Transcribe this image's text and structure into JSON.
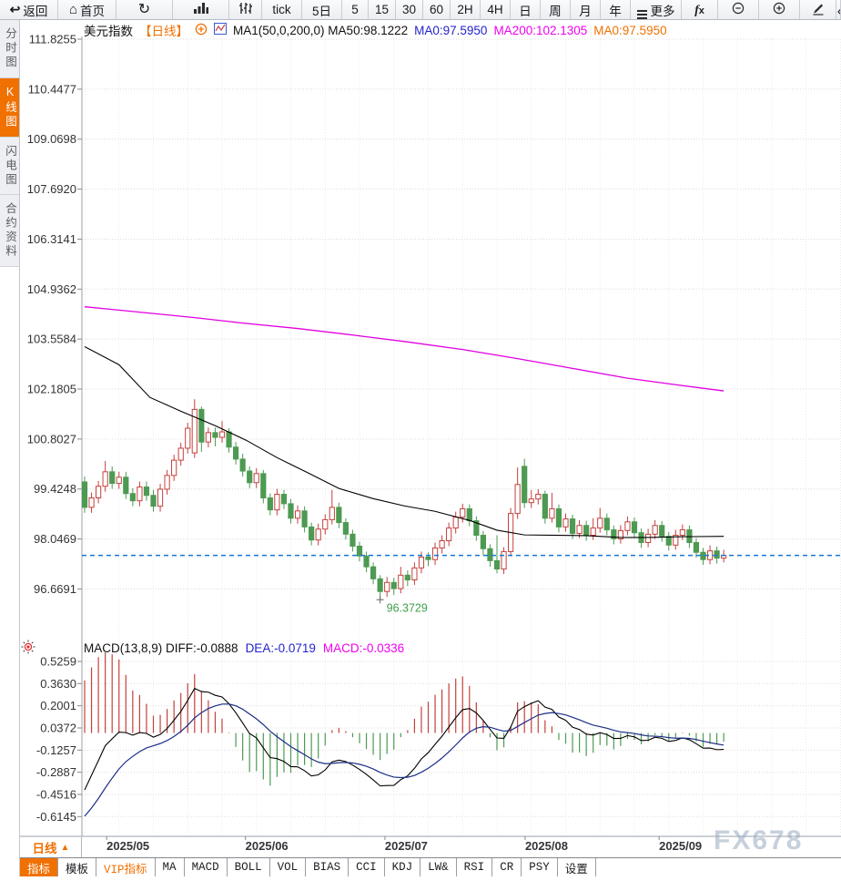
{
  "toolbar": {
    "items": [
      {
        "id": "back-button",
        "label": "返回",
        "icon": "back-icon"
      },
      {
        "id": "home-button",
        "label": "首页",
        "icon": "home-icon"
      },
      {
        "id": "refresh-button",
        "label": "",
        "icon": "refresh-icon"
      },
      {
        "id": "bar-chart-button",
        "label": "",
        "icon": "bars-icon"
      },
      {
        "id": "candle-chart-button",
        "label": "",
        "icon": "candles-icon"
      },
      {
        "id": "period-tick-button",
        "label": "tick",
        "icon": ""
      },
      {
        "id": "period-5d-button",
        "label": "5日",
        "icon": ""
      },
      {
        "id": "period-5-button",
        "label": "5",
        "icon": ""
      },
      {
        "id": "period-15-button",
        "label": "15",
        "icon": ""
      },
      {
        "id": "period-30-button",
        "label": "30",
        "icon": ""
      },
      {
        "id": "period-60-button",
        "label": "60",
        "icon": ""
      },
      {
        "id": "period-2h-button",
        "label": "2H",
        "icon": ""
      },
      {
        "id": "period-4h-button",
        "label": "4H",
        "icon": ""
      },
      {
        "id": "period-day-button",
        "label": "日",
        "icon": ""
      },
      {
        "id": "period-week-button",
        "label": "周",
        "icon": ""
      },
      {
        "id": "period-month-button",
        "label": "月",
        "icon": ""
      },
      {
        "id": "period-year-button",
        "label": "年",
        "icon": ""
      },
      {
        "id": "more-button",
        "label": "更多",
        "icon": "more-icon"
      },
      {
        "id": "indicator-fx-button",
        "label": "fx",
        "icon": ""
      },
      {
        "id": "zoom-out-button",
        "label": "",
        "icon": "zoom-out-icon"
      },
      {
        "id": "zoom-in-button",
        "label": "",
        "icon": "zoom-in-icon"
      },
      {
        "id": "draw-pencil-button",
        "label": "",
        "icon": "pencil-icon"
      },
      {
        "id": "clipped-button",
        "label": "",
        "icon": "partial-icon"
      }
    ]
  },
  "sidebar": {
    "items": [
      {
        "id": "time-chart",
        "label": "分时图",
        "active": false
      },
      {
        "id": "kline-chart",
        "label": "K线图",
        "active": true
      },
      {
        "id": "flash-chart",
        "label": "闪电图",
        "active": false
      },
      {
        "id": "contract-info",
        "label": "合约资料",
        "active": false
      }
    ]
  },
  "price_legend": {
    "symbol": "美元指数",
    "period": "【日线】",
    "ma_settings": "MA1(50,0,200,0) MA50:98.1222",
    "ma0_blue": "MA0:97.5950",
    "ma200": "MA200:102.1305",
    "ma0_orange": "MA0:97.5950"
  },
  "macd_legend": {
    "title": "MACD(13,8,9) DIFF:-0.0888",
    "dea": "DEA:-0.0719",
    "macd": "MACD:-0.0336"
  },
  "bottom": {
    "period_selector": {
      "label": "日线",
      "arrow": "▲"
    },
    "tabs": [
      {
        "id": "indicator",
        "label": "指标",
        "active": true
      },
      {
        "id": "template",
        "label": "模板"
      },
      {
        "id": "vip-indicator",
        "label": "VIP指标",
        "vip": true
      },
      {
        "id": "ma",
        "label": "MA"
      },
      {
        "id": "macd",
        "label": "MACD"
      },
      {
        "id": "boll",
        "label": "BOLL"
      },
      {
        "id": "vol",
        "label": "VOL"
      },
      {
        "id": "bias",
        "label": "BIAS"
      },
      {
        "id": "cci",
        "label": "CCI"
      },
      {
        "id": "kdj",
        "label": "KDJ"
      },
      {
        "id": "lwr",
        "label": "LW&"
      },
      {
        "id": "rsi",
        "label": "RSI"
      },
      {
        "id": "cr",
        "label": "CR"
      },
      {
        "id": "psy",
        "label": "PSY"
      },
      {
        "id": "settings",
        "label": "设置"
      }
    ]
  },
  "watermark": "FX678",
  "chart_data": {
    "type": "candlestick+macd",
    "title": "美元指数 日线",
    "price_axis": {
      "ticks": [
        "111.8255",
        "110.4477",
        "109.0698",
        "107.6920",
        "106.3141",
        "104.9362",
        "103.5584",
        "102.1805",
        "100.8027",
        "99.4248",
        "98.0469",
        "96.6691"
      ]
    },
    "macd_axis": {
      "ticks": [
        "0.5259",
        "0.3630",
        "0.2001",
        "0.0372",
        "-0.1257",
        "-0.2887",
        "-0.4516",
        "-0.6145"
      ]
    },
    "x_axis": {
      "month_ticks": [
        {
          "index": 3.2,
          "label": "2025/05"
        },
        {
          "index": 23.4,
          "label": "2025/06"
        },
        {
          "index": 43.7,
          "label": "2025/07"
        },
        {
          "index": 64.1,
          "label": "2025/08"
        },
        {
          "index": 83.6,
          "label": "2025/09"
        }
      ]
    },
    "current_price": 97.595,
    "low_marker": {
      "index": 43,
      "value": 96.3729,
      "label": "96.3729"
    },
    "candles": [
      [
        99.62,
        99.77,
        98.77,
        98.92
      ],
      [
        98.92,
        99.33,
        98.77,
        99.18
      ],
      [
        99.18,
        99.65,
        99.03,
        99.5
      ],
      [
        99.5,
        100.2,
        99.35,
        99.9
      ],
      [
        99.9,
        100.05,
        99.43,
        99.58
      ],
      [
        99.58,
        99.9,
        99.43,
        99.75
      ],
      [
        99.75,
        99.9,
        99.15,
        99.3
      ],
      [
        99.3,
        99.45,
        98.95,
        99.1
      ],
      [
        99.1,
        99.63,
        98.95,
        99.48
      ],
      [
        99.48,
        99.63,
        99.1,
        99.25
      ],
      [
        99.25,
        99.4,
        98.8,
        98.95
      ],
      [
        98.95,
        99.57,
        98.8,
        99.42
      ],
      [
        99.42,
        99.95,
        99.27,
        99.8
      ],
      [
        99.8,
        100.37,
        99.65,
        100.22
      ],
      [
        100.22,
        100.7,
        100.07,
        100.55
      ],
      [
        100.55,
        101.25,
        100.4,
        101.1
      ],
      [
        100.42,
        101.9,
        100.28,
        101.62
      ],
      [
        101.62,
        101.7,
        100.45,
        100.72
      ],
      [
        100.72,
        101.12,
        100.57,
        100.98
      ],
      [
        100.98,
        101.12,
        100.6,
        100.85
      ],
      [
        100.85,
        101.3,
        100.7,
        101.0
      ],
      [
        101.0,
        101.1,
        100.43,
        100.58
      ],
      [
        100.58,
        100.72,
        100.1,
        100.25
      ],
      [
        100.25,
        100.4,
        99.77,
        99.92
      ],
      [
        99.92,
        100.05,
        99.45,
        99.6
      ],
      [
        99.6,
        100.0,
        99.45,
        99.85
      ],
      [
        99.85,
        99.95,
        99.03,
        99.18
      ],
      [
        99.18,
        99.3,
        98.7,
        98.85
      ],
      [
        98.85,
        99.43,
        98.7,
        99.28
      ],
      [
        99.28,
        99.4,
        98.87,
        99.02
      ],
      [
        99.02,
        99.15,
        98.47,
        98.62
      ],
      [
        98.62,
        98.97,
        98.47,
        98.82
      ],
      [
        98.82,
        98.95,
        98.23,
        98.38
      ],
      [
        98.38,
        98.5,
        97.87,
        98.02
      ],
      [
        98.02,
        98.47,
        97.87,
        98.32
      ],
      [
        98.32,
        98.73,
        98.17,
        98.58
      ],
      [
        98.58,
        99.4,
        98.45,
        98.92
      ],
      [
        98.92,
        99.05,
        98.35,
        98.5
      ],
      [
        98.5,
        98.62,
        98.03,
        98.18
      ],
      [
        98.18,
        98.3,
        97.7,
        97.85
      ],
      [
        97.85,
        97.97,
        97.43,
        97.58
      ],
      [
        97.58,
        97.7,
        97.13,
        97.28
      ],
      [
        97.28,
        97.4,
        96.8,
        96.95
      ],
      [
        96.95,
        97.05,
        96.3729,
        96.6
      ],
      [
        96.6,
        97.0,
        96.45,
        96.85
      ],
      [
        96.85,
        96.98,
        96.5,
        96.68
      ],
      [
        96.68,
        97.28,
        96.55,
        97.05
      ],
      [
        97.05,
        97.18,
        96.75,
        96.92
      ],
      [
        96.92,
        97.4,
        96.78,
        97.25
      ],
      [
        97.25,
        97.7,
        97.1,
        97.55
      ],
      [
        97.55,
        97.68,
        97.3,
        97.48
      ],
      [
        97.48,
        97.95,
        97.33,
        97.8
      ],
      [
        97.8,
        98.15,
        97.65,
        98.0
      ],
      [
        98.0,
        98.5,
        97.85,
        98.35
      ],
      [
        98.35,
        98.8,
        98.2,
        98.65
      ],
      [
        98.65,
        99.02,
        98.5,
        98.88
      ],
      [
        98.88,
        99.0,
        98.4,
        98.55
      ],
      [
        98.55,
        98.67,
        98.0,
        98.15
      ],
      [
        98.15,
        98.27,
        97.6,
        97.78
      ],
      [
        97.78,
        97.9,
        97.28,
        97.45
      ],
      [
        97.45,
        98.15,
        97.1,
        97.22
      ],
      [
        97.22,
        97.82,
        97.08,
        97.7
      ],
      [
        97.7,
        98.9,
        97.57,
        98.75
      ],
      [
        98.75,
        100.02,
        98.6,
        99.55
      ],
      [
        100.05,
        100.26,
        98.9,
        99.05
      ],
      [
        99.05,
        99.4,
        98.9,
        99.15
      ],
      [
        99.15,
        99.42,
        99.0,
        99.28
      ],
      [
        99.28,
        99.38,
        98.47,
        98.62
      ],
      [
        98.62,
        99.32,
        98.5,
        98.88
      ],
      [
        98.88,
        99.0,
        98.23,
        98.38
      ],
      [
        98.38,
        98.75,
        98.25,
        98.6
      ],
      [
        98.6,
        98.72,
        98.05,
        98.2
      ],
      [
        98.2,
        98.57,
        98.07,
        98.42
      ],
      [
        98.42,
        98.55,
        98.0,
        98.15
      ],
      [
        98.15,
        98.62,
        98.02,
        98.35
      ],
      [
        98.35,
        98.9,
        98.22,
        98.62
      ],
      [
        98.62,
        98.75,
        98.15,
        98.3
      ],
      [
        98.3,
        98.42,
        97.9,
        98.05
      ],
      [
        98.05,
        98.43,
        97.92,
        98.28
      ],
      [
        98.28,
        98.67,
        98.15,
        98.52
      ],
      [
        98.52,
        98.64,
        98.07,
        98.22
      ],
      [
        98.22,
        98.34,
        97.8,
        97.95
      ],
      [
        97.95,
        98.33,
        97.82,
        98.18
      ],
      [
        98.18,
        98.57,
        98.05,
        98.42
      ],
      [
        98.42,
        98.54,
        97.97,
        98.12
      ],
      [
        98.12,
        98.24,
        97.73,
        97.88
      ],
      [
        97.88,
        98.3,
        97.75,
        98.15
      ],
      [
        98.15,
        98.45,
        98.02,
        98.3
      ],
      [
        98.3,
        98.42,
        97.8,
        97.95
      ],
      [
        97.95,
        98.07,
        97.53,
        97.68
      ],
      [
        97.68,
        97.8,
        97.33,
        97.48
      ],
      [
        97.48,
        97.87,
        97.35,
        97.72
      ],
      [
        97.72,
        97.84,
        97.37,
        97.52
      ],
      [
        97.52,
        97.75,
        97.4,
        97.595
      ]
    ],
    "ma50": {
      "color": "#000000",
      "points": [
        [
          0,
          103.35
        ],
        [
          5,
          102.85
        ],
        [
          9.5,
          101.95
        ],
        [
          14,
          101.57
        ],
        [
          19,
          101.17
        ],
        [
          23.5,
          100.77
        ],
        [
          28,
          100.29
        ],
        [
          32.5,
          99.87
        ],
        [
          37,
          99.44
        ],
        [
          42,
          99.16
        ],
        [
          46.5,
          98.96
        ],
        [
          51,
          98.81
        ],
        [
          56,
          98.56
        ],
        [
          60,
          98.29
        ],
        [
          64,
          98.16
        ],
        [
          69,
          98.15
        ],
        [
          73,
          98.14
        ],
        [
          78,
          98.09
        ],
        [
          82,
          98.09
        ],
        [
          87,
          98.11
        ],
        [
          93,
          98.12
        ]
      ]
    },
    "ma200": {
      "color": "#e100e1",
      "points": [
        [
          0,
          104.45
        ],
        [
          8,
          104.3
        ],
        [
          16,
          104.15
        ],
        [
          23,
          104.0
        ],
        [
          31,
          103.85
        ],
        [
          39,
          103.67
        ],
        [
          47,
          103.48
        ],
        [
          55,
          103.27
        ],
        [
          63,
          103.02
        ],
        [
          71,
          102.75
        ],
        [
          79,
          102.48
        ],
        [
          86,
          102.3
        ],
        [
          93,
          102.13
        ]
      ]
    },
    "macd": {
      "params": "13,8,9",
      "diff_last": -0.0888,
      "dea_last": -0.0719,
      "macd_last": -0.0336
    },
    "colors": {
      "up": "#c4403c",
      "down": "#4d9a52",
      "current_price_line": "#1677d9",
      "low_label": "#3da04a",
      "diff_line": "#000000",
      "dea_line": "#1c2f87",
      "grid": "#dcdcdc"
    }
  }
}
